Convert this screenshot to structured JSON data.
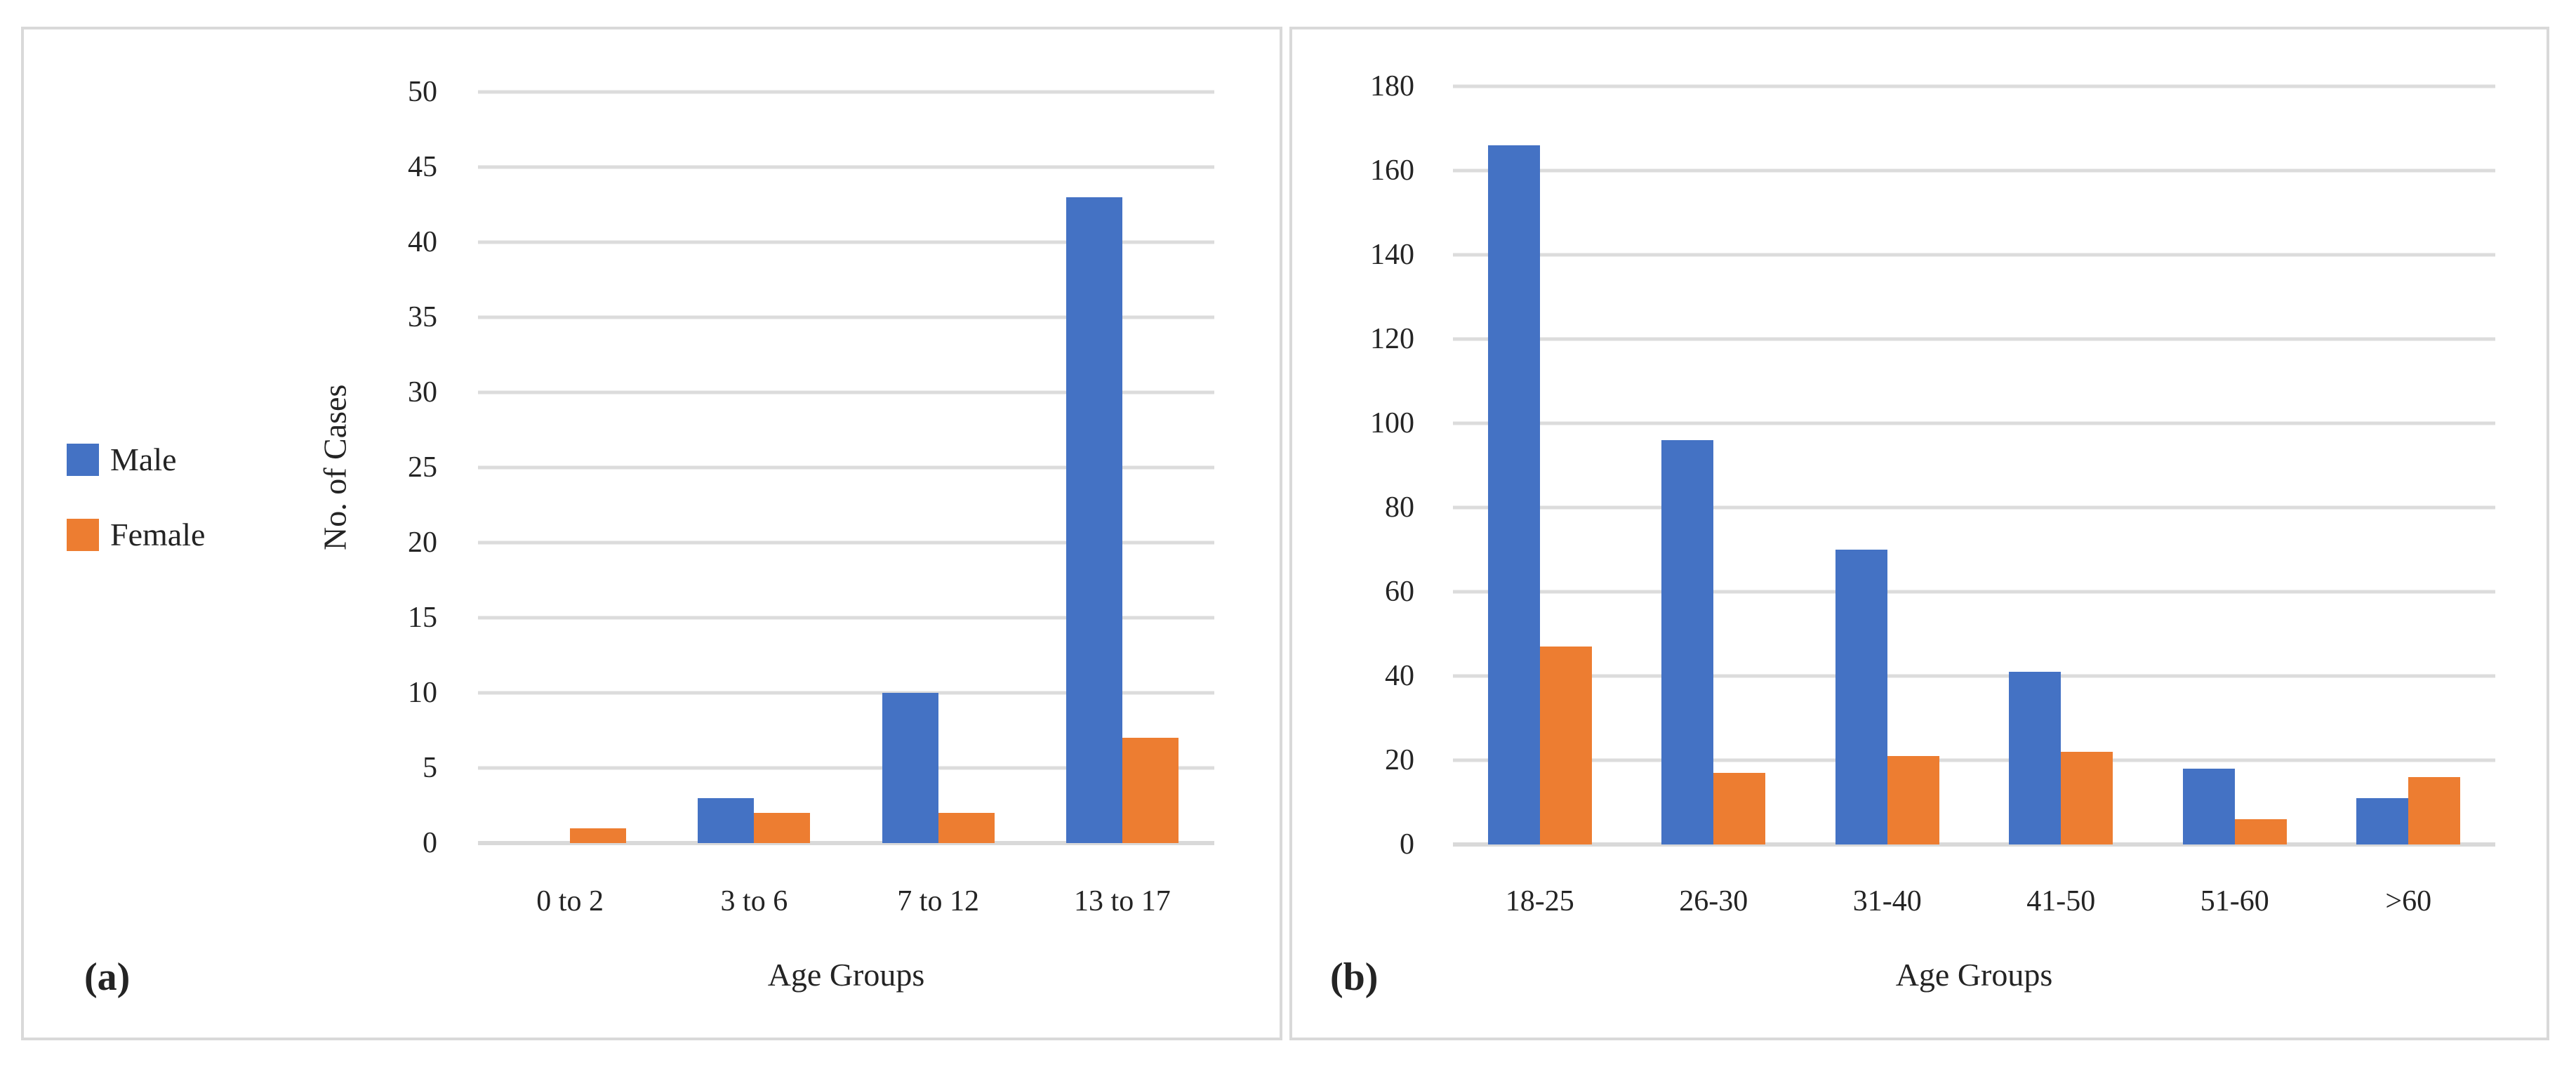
{
  "colors": {
    "male": "#4472C4",
    "female": "#ED7D31",
    "gridline": "#DCDCDC",
    "panel_border": "#D9D9D9",
    "text": "#242424"
  },
  "legend": {
    "items": [
      {
        "label": "Male",
        "color": "#4472C4"
      },
      {
        "label": "Female",
        "color": "#ED7D31"
      }
    ]
  },
  "panel_a": {
    "label": "(a)",
    "ylabel": "No. of Cases",
    "xlabel": "Age Groups"
  },
  "panel_b": {
    "label": "(b)",
    "xlabel": "Age Groups"
  },
  "chart_data": [
    {
      "type": "bar",
      "panel": "a",
      "title": "",
      "xlabel": "Age Groups",
      "ylabel": "No. of Cases",
      "categories": [
        "0 to 2",
        "3 to 6",
        "7 to 12",
        "13 to 17"
      ],
      "series": [
        {
          "name": "Male",
          "color": "#4472C4",
          "values": [
            0,
            3,
            10,
            43
          ]
        },
        {
          "name": "Female",
          "color": "#ED7D31",
          "values": [
            1,
            2,
            2,
            7
          ]
        }
      ],
      "ylim": [
        0,
        50
      ],
      "ytick_step": 5,
      "yticks": [
        0,
        5,
        10,
        15,
        20,
        25,
        30,
        35,
        40,
        45,
        50
      ],
      "grid": true,
      "legend_position": "left"
    },
    {
      "type": "bar",
      "panel": "b",
      "title": "",
      "xlabel": "Age Groups",
      "ylabel": "",
      "categories": [
        "18-25",
        "26-30",
        "31-40",
        "41-50",
        "51-60",
        ">60"
      ],
      "series": [
        {
          "name": "Male",
          "color": "#4472C4",
          "values": [
            166,
            96,
            70,
            41,
            18,
            11
          ]
        },
        {
          "name": "Female",
          "color": "#ED7D31",
          "values": [
            47,
            17,
            21,
            22,
            6,
            16
          ]
        }
      ],
      "ylim": [
        0,
        180
      ],
      "ytick_step": 20,
      "yticks": [
        0,
        20,
        40,
        60,
        80,
        100,
        120,
        140,
        160,
        180
      ],
      "grid": true,
      "legend_position": "none"
    }
  ]
}
